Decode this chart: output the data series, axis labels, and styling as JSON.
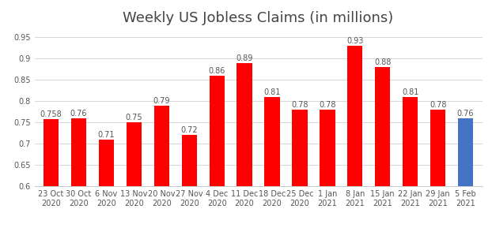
{
  "title": "Weekly US Jobless Claims (in millions)",
  "categories": [
    "23 Oct\n2020",
    "30 Oct\n2020",
    "6 Nov\n2020",
    "13 Nov\n2020",
    "20 Nov\n2020",
    "27 Nov\n2020",
    "4 Dec\n2020",
    "11 Dec\n2020",
    "18 Dec\n2020",
    "25 Dec\n2020",
    "1 Jan\n2021",
    "8 Jan\n2021",
    "15 Jan\n2021",
    "22 Jan\n2021",
    "29 Jan\n2021",
    "5 Feb\n2021"
  ],
  "values": [
    0.758,
    0.76,
    0.71,
    0.75,
    0.79,
    0.72,
    0.86,
    0.89,
    0.81,
    0.78,
    0.78,
    0.93,
    0.88,
    0.81,
    0.78,
    0.76
  ],
  "bar_colors": [
    "red",
    "red",
    "red",
    "red",
    "red",
    "red",
    "red",
    "red",
    "red",
    "red",
    "red",
    "red",
    "red",
    "red",
    "red",
    "#4472c4"
  ],
  "ylim": [
    0.6,
    0.97
  ],
  "yticks": [
    0.6,
    0.65,
    0.7,
    0.75,
    0.8,
    0.85,
    0.9,
    0.95
  ],
  "ytick_labels": [
    "0.6",
    "0.65",
    "0.7",
    "0.75",
    "0.8",
    "0.85",
    "0.9",
    "0.95"
  ],
  "value_labels": [
    "0.758",
    "0.76",
    "0.71",
    "0.75",
    "0.79",
    "0.72",
    "0.86",
    "0.89",
    "0.81",
    "0.78",
    "0.78",
    "0.93",
    "0.88",
    "0.81",
    "0.78",
    "0.76"
  ],
  "title_fontsize": 13,
  "label_fontsize": 7,
  "tick_fontsize": 7,
  "background_color": "#ffffff",
  "bar_bottom": 0.6
}
